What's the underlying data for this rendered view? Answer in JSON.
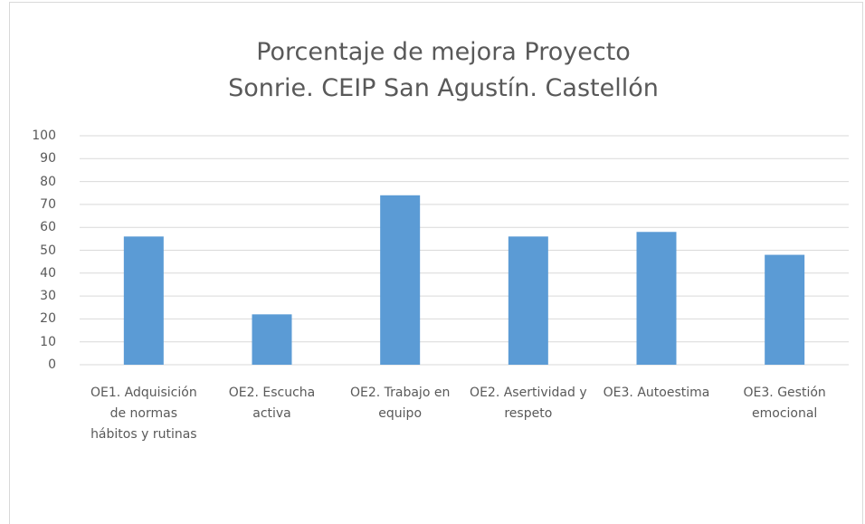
{
  "chart_data": {
    "type": "bar",
    "title": "Porcentaje de mejora Proyecto Sonrie. CEIP San Agustín. Castellón",
    "categories": [
      "OE1. Adquisición de normas hábitos y rutinas",
      "OE2. Escucha activa",
      "OE2. Trabajo en equipo",
      "OE2. Asertividad y respeto",
      "OE3. Autoestima",
      "OE3. Gestión emocional"
    ],
    "values": [
      56,
      22,
      74,
      56,
      58,
      48
    ],
    "color": "#5b9bd5",
    "ylim": [
      0,
      100
    ],
    "yticks": [
      0,
      10,
      20,
      30,
      40,
      50,
      60,
      70,
      80,
      90,
      100
    ],
    "grid": true
  }
}
